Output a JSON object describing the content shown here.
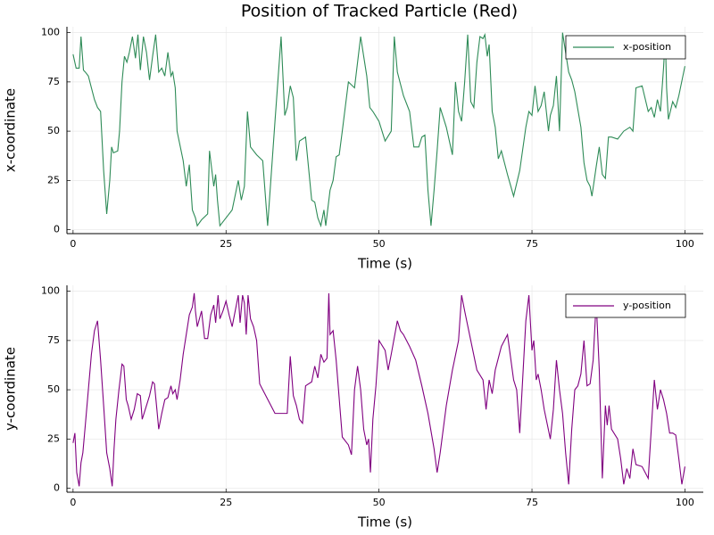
{
  "chart_data": [
    {
      "type": "line",
      "title": "Position of Tracked Particle (Red)",
      "xlabel": "Time (s)",
      "ylabel": "x-coordinate",
      "x": [
        0,
        0.5,
        1,
        1.3,
        1.7,
        2,
        2.5,
        3,
        3.5,
        4,
        4.5,
        5,
        5.5,
        6,
        6.3,
        6.6,
        7.3,
        7.6,
        8,
        8.4,
        8.8,
        9.2,
        9.7,
        10.2,
        10.6,
        11,
        11.5,
        12,
        12.5,
        13,
        13.5,
        14,
        14.5,
        15,
        15.5,
        16,
        16.3,
        16.7,
        17,
        18,
        18.5,
        19,
        19.5,
        20,
        20.3,
        21,
        22,
        22.3,
        23,
        23.3,
        23.6,
        24,
        25,
        26,
        27,
        27.5,
        28,
        28.5,
        29,
        30,
        31,
        31.8,
        33,
        34,
        34.6,
        35,
        35.5,
        36,
        36.5,
        37,
        38,
        39,
        39.5,
        40,
        40.5,
        41,
        41.3,
        42,
        42.5,
        43,
        43.5,
        44,
        45,
        46,
        47,
        48,
        48.5,
        49,
        50,
        51,
        52,
        52.5,
        53,
        54,
        55,
        55.7,
        56.5,
        57,
        57.5,
        58,
        58.5,
        59,
        59.5,
        60,
        61,
        62,
        62.5,
        63,
        63.5,
        64,
        64.5,
        65,
        65.5,
        66,
        66.5,
        67,
        67.3,
        67.7,
        68,
        68.5,
        69,
        69.5,
        70,
        70.5,
        71,
        72,
        73,
        74,
        74.5,
        75,
        75.5,
        76,
        76.5,
        77,
        77.7,
        78,
        78.5,
        79,
        79.5,
        80,
        80.5,
        81,
        81.5,
        82,
        83,
        83.5,
        84,
        84.5,
        84.8,
        85.5,
        86,
        86.5,
        87,
        87.5,
        88,
        89,
        90,
        91,
        91.5,
        92,
        93,
        94,
        94.5,
        95,
        95.5,
        96,
        96.5,
        96.8,
        97,
        97.3,
        98,
        98.5,
        99,
        100
      ],
      "series": [
        {
          "name": "x-position",
          "color": "#2e8b57",
          "values": [
            89,
            82,
            82,
            98,
            81,
            80,
            78,
            72,
            66,
            62,
            60,
            30,
            8,
            25,
            42,
            39,
            40,
            50,
            75,
            88,
            85,
            90,
            98,
            87,
            99,
            81,
            98,
            90,
            76,
            88,
            99,
            80,
            82,
            78,
            90,
            78,
            80,
            72,
            50,
            35,
            22,
            33,
            10,
            6,
            2,
            5,
            8,
            40,
            22,
            28,
            15,
            2,
            6,
            10,
            25,
            15,
            22,
            60,
            42,
            38,
            35,
            2,
            55,
            98,
            58,
            62,
            73,
            67,
            35,
            45,
            47,
            15,
            14,
            6,
            2,
            10,
            2,
            20,
            25,
            37,
            38,
            50,
            75,
            72,
            98,
            78,
            62,
            60,
            55,
            45,
            50,
            98,
            80,
            68,
            60,
            42,
            42,
            47,
            48,
            20,
            2,
            20,
            40,
            62,
            52,
            38,
            75,
            60,
            55,
            75,
            99,
            65,
            62,
            85,
            98,
            97,
            99,
            88,
            94,
            60,
            52,
            36,
            40,
            34,
            28,
            17,
            30,
            52,
            60,
            58,
            73,
            60,
            63,
            70,
            50,
            58,
            63,
            78,
            50,
            100,
            90,
            80,
            76,
            70,
            52,
            34,
            25,
            22,
            17,
            32,
            42,
            28,
            26,
            47,
            47,
            46,
            50,
            52,
            50,
            72,
            73,
            60,
            62,
            57,
            66,
            60,
            82,
            98,
            72,
            56,
            65,
            62,
            68,
            83
          ]
        }
      ],
      "xlim": [
        -1,
        103
      ],
      "ylim": [
        -2,
        103
      ],
      "xticks": [
        0,
        25,
        50,
        75,
        100
      ],
      "yticks": [
        0,
        25,
        50,
        75,
        100
      ],
      "grid": true,
      "legend": "top-right"
    },
    {
      "type": "line",
      "xlabel": "Time (s)",
      "ylabel": "y-coordinate",
      "x": [
        0,
        0.3,
        0.6,
        1,
        1.3,
        1.6,
        2,
        2.5,
        3,
        3.5,
        4,
        4.5,
        5,
        5.5,
        6,
        6.4,
        6.7,
        7,
        7.5,
        8,
        8.3,
        8.7,
        9,
        9.5,
        10,
        10.5,
        11,
        11.3,
        12,
        12.5,
        13,
        13.3,
        13.7,
        14,
        14.5,
        15,
        15.5,
        16,
        16.3,
        16.7,
        17,
        17.5,
        18,
        19,
        19.5,
        19.8,
        20,
        20.3,
        21,
        21.5,
        22,
        22.5,
        23,
        23.3,
        23.7,
        24,
        24.5,
        25,
        25.5,
        26,
        26.5,
        27,
        27.3,
        27.7,
        28,
        28.3,
        28.6,
        29,
        29.5,
        30,
        30.5,
        31,
        32,
        33,
        34,
        35,
        35.5,
        36,
        36.5,
        37,
        37.5,
        38,
        39,
        39.5,
        40,
        40.5,
        41,
        41.5,
        41.8,
        42,
        42.5,
        43,
        44,
        45,
        45.5,
        46,
        46.5,
        47,
        47.5,
        48,
        48.3,
        48.6,
        49,
        49.5,
        50,
        51,
        51.5,
        52,
        53,
        53.5,
        54,
        55,
        56,
        57,
        58,
        59,
        59.5,
        60,
        61,
        62,
        63,
        63.5,
        64,
        65,
        66,
        67,
        67.5,
        68,
        68.5,
        69,
        70,
        71,
        72,
        72.5,
        73,
        74,
        74.5,
        75,
        75.3,
        75.7,
        76,
        76.5,
        77,
        78,
        78.5,
        79,
        79.5,
        80,
        80.5,
        81,
        81.5,
        82,
        82.5,
        83,
        83.5,
        84,
        84.5,
        85,
        85.5,
        86,
        86.5,
        87,
        87.3,
        87.6,
        88,
        89,
        89.5,
        90,
        90.5,
        91,
        91.5,
        92,
        93,
        94,
        95,
        95.5,
        96,
        96.5,
        97,
        97.5,
        98,
        98.5,
        99,
        99.5,
        100
      ],
      "series": [
        {
          "name": "y-position",
          "color": "#800080",
          "values": [
            23,
            28,
            8,
            1,
            13,
            18,
            32,
            50,
            68,
            80,
            85,
            65,
            42,
            18,
            10,
            1,
            20,
            35,
            50,
            63,
            62,
            45,
            42,
            35,
            40,
            48,
            47,
            35,
            42,
            47,
            54,
            53,
            40,
            30,
            38,
            45,
            46,
            52,
            48,
            50,
            45,
            55,
            68,
            88,
            92,
            99,
            90,
            82,
            90,
            76,
            76,
            88,
            93,
            84,
            98,
            86,
            90,
            95,
            88,
            82,
            90,
            98,
            84,
            98,
            94,
            78,
            98,
            86,
            82,
            75,
            53,
            50,
            44,
            38,
            38,
            38,
            67,
            47,
            42,
            35,
            33,
            52,
            54,
            62,
            56,
            68,
            64,
            66,
            99,
            78,
            80,
            65,
            26,
            22,
            17,
            50,
            62,
            50,
            30,
            22,
            25,
            8,
            35,
            52,
            75,
            70,
            60,
            68,
            85,
            80,
            78,
            72,
            65,
            52,
            38,
            20,
            8,
            18,
            42,
            60,
            75,
            98,
            90,
            75,
            60,
            55,
            40,
            55,
            48,
            60,
            72,
            78,
            55,
            50,
            28,
            85,
            98,
            70,
            75,
            55,
            58,
            50,
            40,
            25,
            40,
            65,
            50,
            38,
            18,
            2,
            30,
            50,
            52,
            58,
            75,
            52,
            53,
            65,
            95,
            60,
            5,
            42,
            32,
            42,
            30,
            25,
            15,
            2,
            10,
            5,
            20,
            12,
            11,
            5,
            55,
            40,
            50,
            45,
            38,
            28,
            28,
            27,
            15,
            2,
            11
          ]
        }
      ],
      "xlim": [
        -1,
        103
      ],
      "ylim": [
        -2,
        103
      ],
      "xticks": [
        0,
        25,
        50,
        75,
        100
      ],
      "yticks": [
        0,
        25,
        50,
        75,
        100
      ],
      "grid": true,
      "legend": "top-right"
    }
  ]
}
